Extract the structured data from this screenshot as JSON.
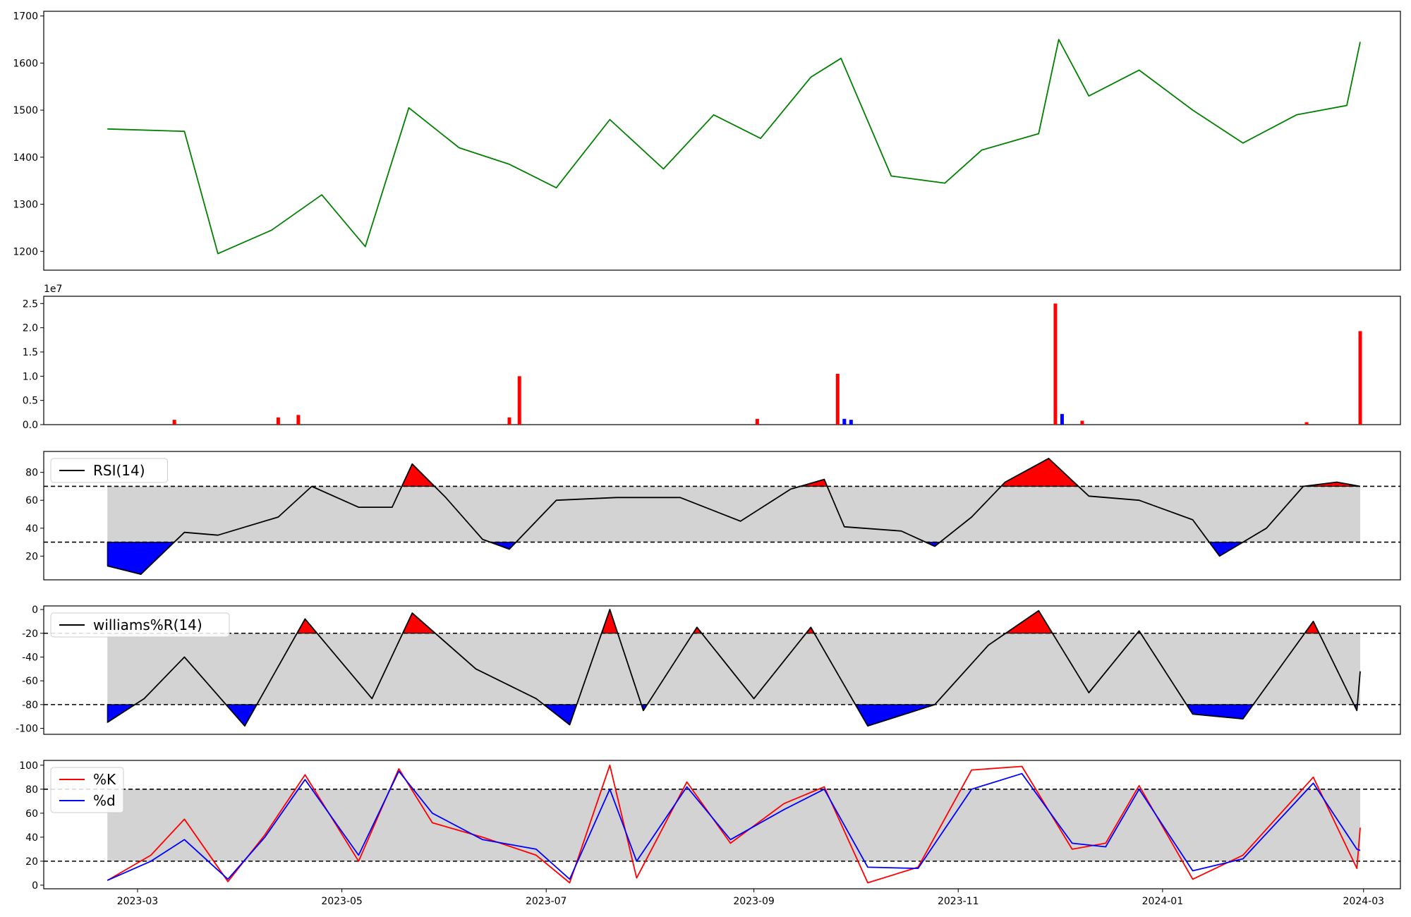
{
  "figure": {
    "x_ticks": [
      "2023-03",
      "2023-05",
      "2023-07",
      "2023-09",
      "2023-11",
      "2024-01",
      "2024-03"
    ]
  },
  "chart_data": [
    {
      "type": "line",
      "panel": "price",
      "color": "#008000",
      "ylim": [
        1160,
        1710
      ],
      "y_ticks": [
        "1200",
        "1300",
        "1400",
        "1500",
        "1600",
        "1700"
      ],
      "x": [
        "2023-02-20",
        "2023-03-15",
        "2023-03-25",
        "2023-04-10",
        "2023-04-25",
        "2023-05-08",
        "2023-05-21",
        "2023-06-05",
        "2023-06-20",
        "2023-07-04",
        "2023-07-20",
        "2023-08-05",
        "2023-08-20",
        "2023-09-03",
        "2023-09-18",
        "2023-09-27",
        "2023-10-12",
        "2023-10-28",
        "2023-11-08",
        "2023-11-25",
        "2023-12-01",
        "2023-12-10",
        "2023-12-25",
        "2024-01-10",
        "2024-01-25",
        "2024-02-10",
        "2024-02-25",
        "2024-02-29"
      ],
      "values": [
        1460,
        1455,
        1195,
        1245,
        1320,
        1210,
        1505,
        1420,
        1385,
        1335,
        1480,
        1375,
        1490,
        1440,
        1570,
        1610,
        1360,
        1345,
        1415,
        1450,
        1650,
        1530,
        1585,
        1500,
        1430,
        1490,
        1510,
        1645
      ]
    },
    {
      "type": "bar",
      "panel": "volume",
      "multiplier_label": "1e7",
      "ylim": [
        0,
        2.65
      ],
      "y_ticks": [
        "0.0",
        "0.5",
        "1.0",
        "1.5",
        "2.0",
        "2.5"
      ],
      "x": [
        "2023-03-12",
        "2023-04-12",
        "2023-04-18",
        "2023-06-20",
        "2023-06-23",
        "2023-09-02",
        "2023-09-26",
        "2023-09-28",
        "2023-09-30",
        "2023-11-30",
        "2023-12-02",
        "2023-12-08",
        "2024-02-13",
        "2024-02-29"
      ],
      "values": [
        0.1,
        0.15,
        0.2,
        0.15,
        1.0,
        0.12,
        1.05,
        0.12,
        0.1,
        2.5,
        0.22,
        0.08,
        0.05,
        1.93
      ],
      "colors": [
        "#ff0000",
        "#ff0000",
        "#ff0000",
        "#ff0000",
        "#ff0000",
        "#ff0000",
        "#ff0000",
        "#0000ff",
        "#0000ff",
        "#ff0000",
        "#0000ff",
        "#ff0000",
        "#ff0000",
        "#ff0000"
      ]
    },
    {
      "type": "line",
      "panel": "rsi",
      "legend": "RSI(14)",
      "color": "#000000",
      "ylim": [
        3,
        95
      ],
      "y_ticks": [
        "20",
        "40",
        "60",
        "80"
      ],
      "thresholds": [
        30,
        70
      ],
      "x": [
        "2023-02-20",
        "2023-03-02",
        "2023-03-15",
        "2023-03-25",
        "2023-04-12",
        "2023-04-22",
        "2023-05-06",
        "2023-05-16",
        "2023-05-22",
        "2023-06-01",
        "2023-06-12",
        "2023-06-20",
        "2023-07-04",
        "2023-07-22",
        "2023-08-10",
        "2023-08-28",
        "2023-09-12",
        "2023-09-22",
        "2023-09-28",
        "2023-10-15",
        "2023-10-25",
        "2023-11-05",
        "2023-11-15",
        "2023-11-28",
        "2023-12-10",
        "2023-12-25",
        "2024-01-10",
        "2024-01-18",
        "2024-02-01",
        "2024-02-12",
        "2024-02-22",
        "2024-02-29"
      ],
      "values": [
        13,
        7,
        37,
        35,
        48,
        70,
        55,
        55,
        86,
        62,
        32,
        25,
        60,
        62,
        62,
        45,
        68,
        75,
        41,
        38,
        27,
        48,
        73,
        90,
        63,
        60,
        46,
        20,
        40,
        70,
        73,
        70
      ]
    },
    {
      "type": "line",
      "panel": "williams",
      "legend": "williams%R(14)",
      "color": "#000000",
      "ylim": [
        -105,
        3
      ],
      "y_ticks": [
        "-100",
        "-80",
        "-60",
        "-40",
        "-20",
        "0"
      ],
      "thresholds": [
        -80,
        -20
      ],
      "x": [
        "2023-02-20",
        "2023-03-03",
        "2023-03-15",
        "2023-04-02",
        "2023-04-20",
        "2023-05-10",
        "2023-05-22",
        "2023-06-10",
        "2023-06-28",
        "2023-07-08",
        "2023-07-20",
        "2023-07-30",
        "2023-08-15",
        "2023-09-01",
        "2023-09-18",
        "2023-10-05",
        "2023-10-25",
        "2023-11-10",
        "2023-11-25",
        "2023-12-10",
        "2023-12-25",
        "2024-01-10",
        "2024-01-25",
        "2024-02-15",
        "2024-02-28",
        "2024-02-29"
      ],
      "values": [
        -95,
        -75,
        -40,
        -98,
        -8,
        -75,
        -3,
        -50,
        -75,
        -97,
        0,
        -85,
        -15,
        -75,
        -15,
        -98,
        -80,
        -30,
        -1,
        -70,
        -18,
        -88,
        -92,
        -10,
        -85,
        -52
      ]
    },
    {
      "type": "line",
      "panel": "stochastic",
      "ylim": [
        -3,
        104
      ],
      "y_ticks": [
        "0",
        "20",
        "40",
        "60",
        "80",
        "100"
      ],
      "thresholds": [
        20,
        80
      ],
      "x": [
        "2023-02-20",
        "2023-03-05",
        "2023-03-15",
        "2023-03-28",
        "2023-04-08",
        "2023-04-20",
        "2023-05-06",
        "2023-05-18",
        "2023-05-28",
        "2023-06-12",
        "2023-06-28",
        "2023-07-08",
        "2023-07-20",
        "2023-07-28",
        "2023-08-12",
        "2023-08-25",
        "2023-09-10",
        "2023-09-22",
        "2023-10-05",
        "2023-10-20",
        "2023-11-05",
        "2023-11-20",
        "2023-12-05",
        "2023-12-15",
        "2023-12-25",
        "2024-01-10",
        "2024-01-25",
        "2024-02-15",
        "2024-02-28",
        "2024-02-29"
      ],
      "series": [
        {
          "name": "%K",
          "color": "#ff0000",
          "values": [
            4,
            25,
            55,
            3,
            42,
            92,
            20,
            97,
            52,
            40,
            25,
            2,
            100,
            6,
            86,
            35,
            68,
            82,
            2,
            15,
            96,
            99,
            30,
            35,
            83,
            5,
            25,
            90,
            14,
            48
          ]
        },
        {
          "name": "%d",
          "color": "#0000ff",
          "values": [
            4,
            20,
            38,
            5,
            40,
            88,
            25,
            95,
            60,
            38,
            30,
            5,
            80,
            20,
            82,
            38,
            63,
            80,
            15,
            14,
            80,
            93,
            35,
            32,
            80,
            12,
            22,
            85,
            30,
            29
          ]
        }
      ]
    }
  ]
}
